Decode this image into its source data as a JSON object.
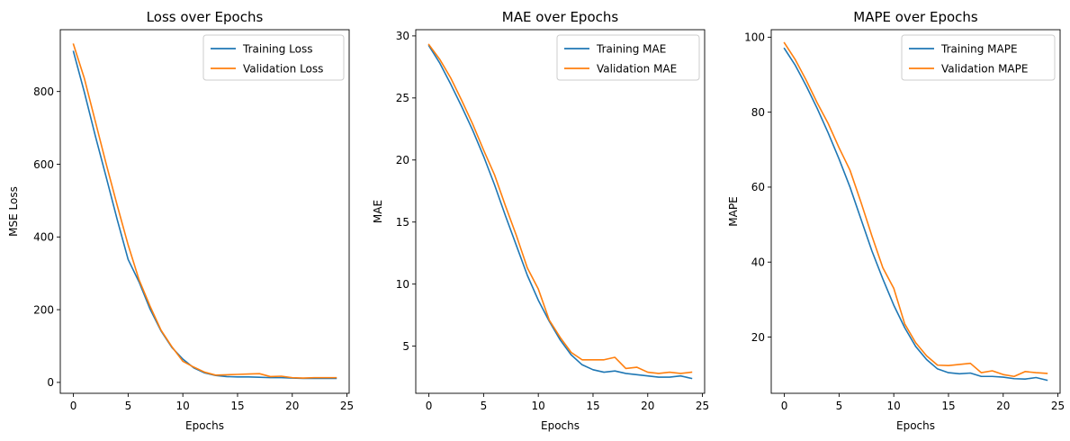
{
  "chart_data": [
    {
      "type": "line",
      "title": "Loss over Epochs",
      "xlabel": "Epochs",
      "ylabel": "MSE Loss",
      "xlim": [
        -1.2,
        25.2
      ],
      "ylim": [
        -30,
        970
      ],
      "xticks": [
        0,
        5,
        10,
        15,
        20,
        25
      ],
      "yticks": [
        0,
        200,
        400,
        600,
        800
      ],
      "legend": "top-right",
      "grid": false,
      "x": [
        0,
        1,
        2,
        3,
        4,
        5,
        6,
        7,
        8,
        9,
        10,
        11,
        12,
        13,
        14,
        15,
        16,
        17,
        18,
        19,
        20,
        21,
        22,
        23,
        24
      ],
      "series": [
        {
          "name": "Training Loss",
          "color": "#1f77b4",
          "values": [
            910,
            798,
            678,
            564,
            448,
            338,
            276,
            202,
            142,
            96,
            64,
            40,
            26,
            19,
            16,
            15,
            15,
            14,
            13,
            13,
            12,
            11,
            11,
            11,
            11
          ]
        },
        {
          "name": "Validation Loss",
          "color": "#ff7f0e",
          "values": [
            930,
            836,
            718,
            600,
            487,
            378,
            282,
            210,
            144,
            98,
            58,
            42,
            28,
            20,
            21,
            22,
            23,
            24,
            16,
            17,
            13,
            12,
            13,
            13,
            13
          ]
        }
      ]
    },
    {
      "type": "line",
      "title": "MAE over Epochs",
      "xlabel": "Epochs",
      "ylabel": "MAE",
      "xlim": [
        -1.2,
        25.2
      ],
      "ylim": [
        1.2,
        30.5
      ],
      "xticks": [
        0,
        5,
        10,
        15,
        20,
        25
      ],
      "yticks": [
        5,
        10,
        15,
        20,
        25,
        30
      ],
      "legend": "top-right",
      "grid": false,
      "x": [
        0,
        1,
        2,
        3,
        4,
        5,
        6,
        7,
        8,
        9,
        10,
        11,
        12,
        13,
        14,
        15,
        16,
        17,
        18,
        19,
        20,
        21,
        22,
        23,
        24
      ],
      "series": [
        {
          "name": "Training MAE",
          "color": "#1f77b4",
          "values": [
            29.2,
            27.8,
            26.1,
            24.3,
            22.4,
            20.3,
            18.0,
            15.5,
            13.1,
            10.7,
            8.7,
            7.0,
            5.5,
            4.3,
            3.5,
            3.1,
            2.9,
            3.0,
            2.8,
            2.7,
            2.6,
            2.5,
            2.5,
            2.6,
            2.4
          ]
        },
        {
          "name": "Validation MAE",
          "color": "#ff7f0e",
          "values": [
            29.3,
            28.1,
            26.6,
            24.8,
            22.9,
            20.8,
            18.8,
            16.3,
            13.9,
            11.3,
            9.6,
            7.1,
            5.7,
            4.5,
            3.9,
            3.9,
            3.9,
            4.1,
            3.2,
            3.3,
            2.9,
            2.8,
            2.9,
            2.8,
            2.9
          ]
        }
      ]
    },
    {
      "type": "line",
      "title": "MAPE over Epochs",
      "xlabel": "Epochs",
      "ylabel": "MAPE",
      "xlim": [
        -1.2,
        25.2
      ],
      "ylim": [
        5,
        102
      ],
      "xticks": [
        0,
        5,
        10,
        15,
        20,
        25
      ],
      "yticks": [
        20,
        40,
        60,
        80,
        100
      ],
      "legend": "top-right",
      "grid": false,
      "x": [
        0,
        1,
        2,
        3,
        4,
        5,
        6,
        7,
        8,
        9,
        10,
        11,
        12,
        13,
        14,
        15,
        16,
        17,
        18,
        19,
        20,
        21,
        22,
        23,
        24
      ],
      "series": [
        {
          "name": "Training MAPE",
          "color": "#1f77b4",
          "values": [
            97.0,
            92.5,
            87.0,
            81.0,
            74.5,
            67.5,
            60.0,
            51.5,
            43.0,
            35.5,
            28.5,
            22.5,
            17.5,
            14.0,
            11.5,
            10.5,
            10.2,
            10.4,
            9.5,
            9.5,
            9.3,
            8.9,
            8.8,
            9.2,
            8.5
          ]
        },
        {
          "name": "Validation MAPE",
          "color": "#ff7f0e",
          "values": [
            98.5,
            94.0,
            88.5,
            82.5,
            77.0,
            70.5,
            64.5,
            56.0,
            47.0,
            38.5,
            33.0,
            23.5,
            18.5,
            15.0,
            12.5,
            12.4,
            12.7,
            13.0,
            10.5,
            11.0,
            10.0,
            9.5,
            10.8,
            10.5,
            10.3
          ]
        }
      ]
    }
  ]
}
